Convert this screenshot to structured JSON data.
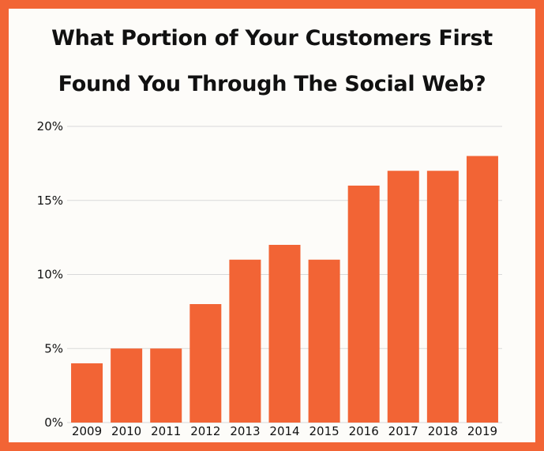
{
  "chart_data": {
    "type": "bar",
    "title_lines": [
      "What Portion of Your Customers First",
      "Found You Through The Social Web?"
    ],
    "categories": [
      "2009",
      "2010",
      "2011",
      "2012",
      "2013",
      "2014",
      "2015",
      "2016",
      "2017",
      "2018",
      "2019"
    ],
    "values": [
      4,
      5,
      5,
      8,
      11,
      12,
      11,
      16,
      17,
      17,
      18
    ],
    "unit": "%",
    "ylim": [
      0,
      20
    ],
    "yticks": [
      0,
      5,
      10,
      15,
      20
    ],
    "ytick_labels": [
      "0%",
      "5%",
      "10%",
      "15%",
      "20%"
    ],
    "grid": true,
    "legend": "none",
    "colors": {
      "bar": "#f26435",
      "border": "#f26435",
      "background": "#fdfcf9",
      "grid": "#d9d9d9"
    }
  }
}
